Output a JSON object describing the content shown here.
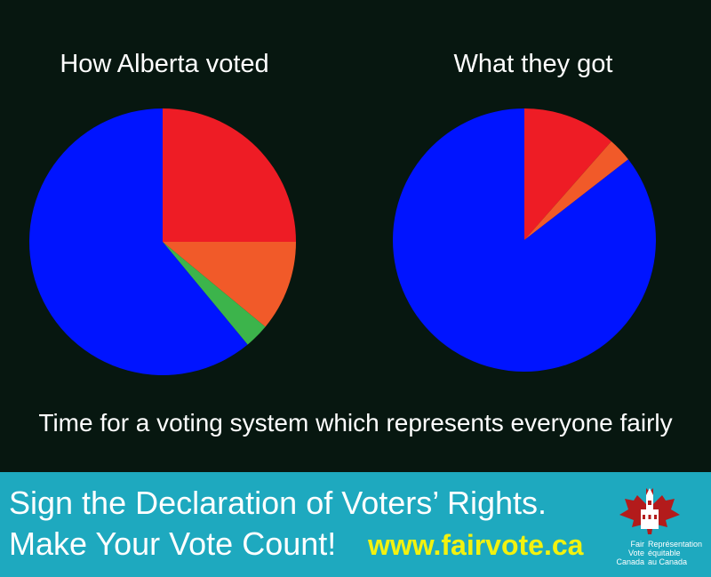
{
  "chart_data": [
    {
      "type": "pie",
      "title": "How Alberta voted",
      "slices": [
        {
          "value": 25,
          "color": "#ee1c25"
        },
        {
          "value": 11,
          "color": "#f15a29"
        },
        {
          "value": 3,
          "color": "#3cb44b"
        },
        {
          "value": 61,
          "color": "#0014ff"
        }
      ]
    },
    {
      "type": "pie",
      "title": "What they got",
      "slices": [
        {
          "value": 11.5,
          "color": "#ee1c25"
        },
        {
          "value": 3,
          "color": "#f15a29"
        },
        {
          "value": 0,
          "color": "#3cb44b"
        },
        {
          "value": 85.5,
          "color": "#0014ff"
        }
      ]
    }
  ],
  "tagline": "Time for a voting system which represents everyone fairly",
  "banner": {
    "line1": "Sign the Declaration of Voters’ Rights.",
    "line2": "Make Your Vote Count!",
    "url": "www.fairvote.ca",
    "background": "#1ea9bf",
    "url_color": "#f2f20f"
  },
  "logo": {
    "english": "Fair\nVote\nCanada",
    "french": "Représentation\néquitable\nau Canada",
    "icon": "maple-leaf-parliament-icon"
  }
}
